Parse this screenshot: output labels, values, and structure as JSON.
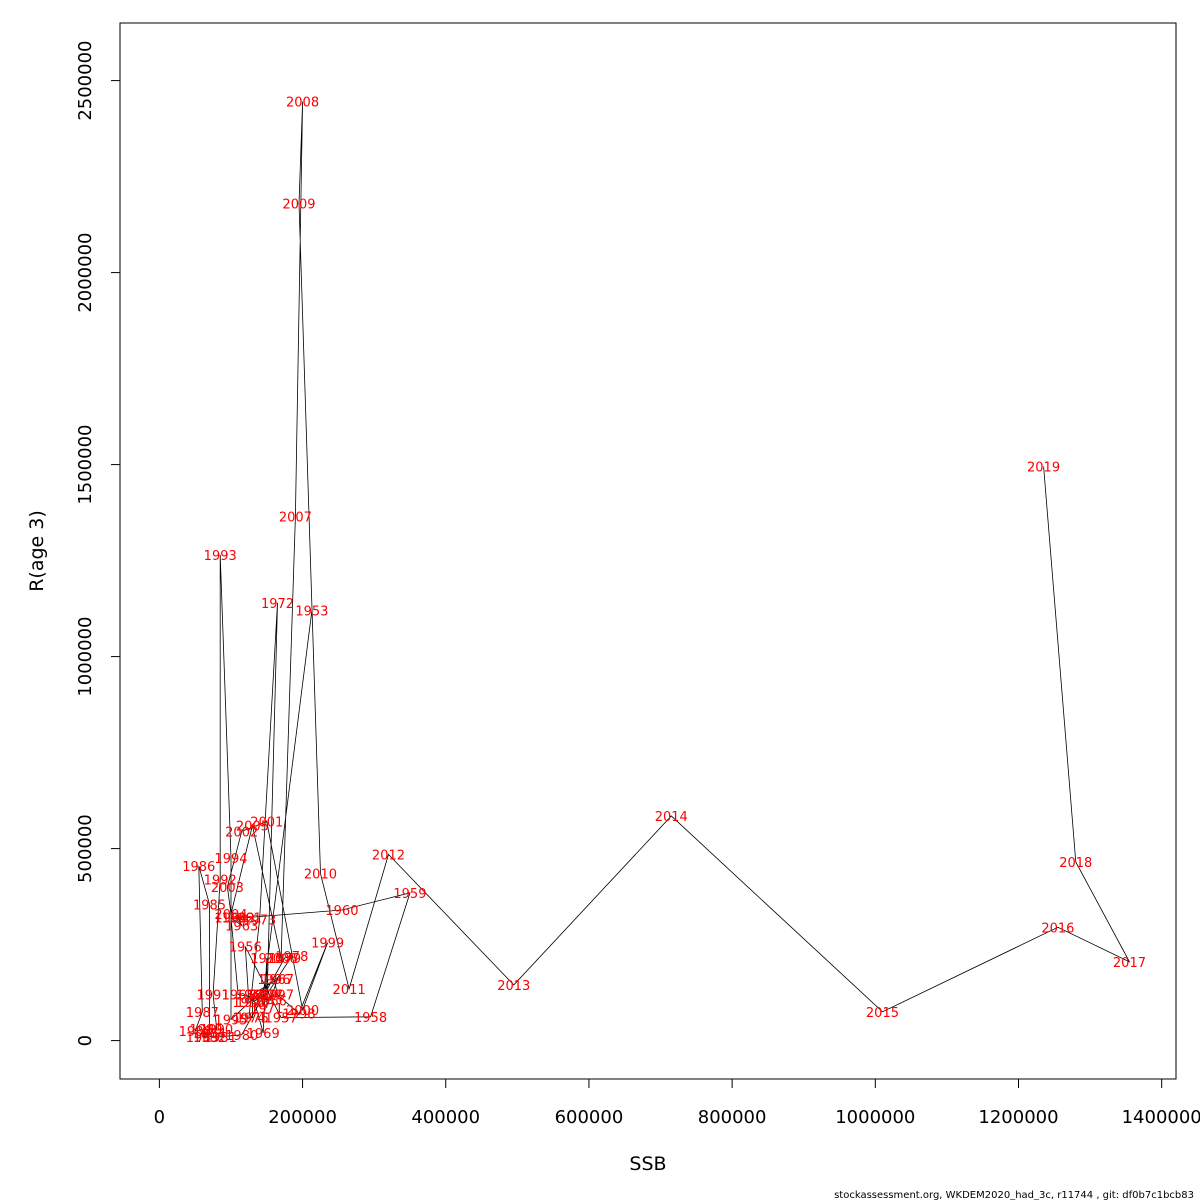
{
  "chart_data": {
    "type": "line",
    "xlabel": "SSB",
    "ylabel": "R(age 3)",
    "xlim": [
      -55000,
      1420000
    ],
    "ylim": [
      -100000,
      2650000
    ],
    "x_ticks": [
      0,
      200000,
      400000,
      600000,
      800000,
      1000000,
      1200000,
      1400000
    ],
    "x_tick_labels": [
      "0",
      "200000",
      "400000",
      "600000",
      "800000",
      "1000000",
      "1200000",
      "1400000"
    ],
    "y_ticks": [
      0,
      500000,
      1000000,
      1500000,
      2000000,
      2500000
    ],
    "y_tick_labels": [
      "0",
      "500000",
      "1000000",
      "1500000",
      "2000000",
      "2500000"
    ],
    "grid": false,
    "line_color": "#000000",
    "label_color": "#ff0000",
    "points": [
      {
        "year": "1953",
        "ssb": 213000,
        "r": 1120000
      },
      {
        "year": "1954",
        "ssb": 145000,
        "r": 120000
      },
      {
        "year": "1955",
        "ssb": 125000,
        "r": 100000
      },
      {
        "year": "1956",
        "ssb": 120000,
        "r": 245000
      },
      {
        "year": "1957",
        "ssb": 170000,
        "r": 60000
      },
      {
        "year": "1958",
        "ssb": 295000,
        "r": 62000
      },
      {
        "year": "1959",
        "ssb": 350000,
        "r": 385000
      },
      {
        "year": "1960",
        "ssb": 255000,
        "r": 340000
      },
      {
        "year": "1961",
        "ssb": 120000,
        "r": 320000
      },
      {
        "year": "1962",
        "ssb": 110000,
        "r": 320000
      },
      {
        "year": "1963",
        "ssb": 115000,
        "r": 300000
      },
      {
        "year": "1964",
        "ssb": 100000,
        "r": 320000
      },
      {
        "year": "1965",
        "ssb": 110000,
        "r": 120000
      },
      {
        "year": "1966",
        "ssb": 155000,
        "r": 105000
      },
      {
        "year": "1967",
        "ssb": 165000,
        "r": 160000
      },
      {
        "year": "1968",
        "ssb": 130000,
        "r": 120000
      },
      {
        "year": "1969",
        "ssb": 145000,
        "r": 20000
      },
      {
        "year": "1970",
        "ssb": 150000,
        "r": 215000
      },
      {
        "year": "1971",
        "ssb": 150000,
        "r": 85000
      },
      {
        "year": "1972",
        "ssb": 165000,
        "r": 1140000
      },
      {
        "year": "1973",
        "ssb": 140000,
        "r": 315000
      },
      {
        "year": "1974",
        "ssb": 125000,
        "r": 60000
      },
      {
        "year": "1975",
        "ssb": 130000,
        "r": 60000
      },
      {
        "year": "1976",
        "ssb": 130000,
        "r": 100000
      },
      {
        "year": "1977",
        "ssb": 150000,
        "r": 120000
      },
      {
        "year": "1978",
        "ssb": 185000,
        "r": 220000
      },
      {
        "year": "1979",
        "ssb": 175000,
        "r": 215000
      },
      {
        "year": "1980",
        "ssb": 115000,
        "r": 15000
      },
      {
        "year": "1981",
        "ssb": 85000,
        "r": 10000
      },
      {
        "year": "1982",
        "ssb": 70000,
        "r": 10000
      },
      {
        "year": "1983",
        "ssb": 60000,
        "r": 10000
      },
      {
        "year": "1984",
        "ssb": 70000,
        "r": 20000
      },
      {
        "year": "1985",
        "ssb": 70000,
        "r": 355000
      },
      {
        "year": "1986",
        "ssb": 55000,
        "r": 455000
      },
      {
        "year": "1987",
        "ssb": 60000,
        "r": 75000
      },
      {
        "year": "1988",
        "ssb": 50000,
        "r": 25000
      },
      {
        "year": "1989",
        "ssb": 65000,
        "r": 30000
      },
      {
        "year": "1990",
        "ssb": 80000,
        "r": 30000
      },
      {
        "year": "1991",
        "ssb": 75000,
        "r": 120000
      },
      {
        "year": "1992",
        "ssb": 85000,
        "r": 420000
      },
      {
        "year": "1993",
        "ssb": 85000,
        "r": 1265000
      },
      {
        "year": "1994",
        "ssb": 100000,
        "r": 475000
      },
      {
        "year": "1995",
        "ssb": 100000,
        "r": 55000
      },
      {
        "year": "1996",
        "ssb": 160000,
        "r": 160000
      },
      {
        "year": "1997",
        "ssb": 165000,
        "r": 120000
      },
      {
        "year": "1998",
        "ssb": 195000,
        "r": 70000
      },
      {
        "year": "1999",
        "ssb": 235000,
        "r": 255000
      },
      {
        "year": "2000",
        "ssb": 200000,
        "r": 80000
      },
      {
        "year": "2001",
        "ssb": 150000,
        "r": 570000
      },
      {
        "year": "2002",
        "ssb": 115000,
        "r": 545000
      },
      {
        "year": "2003",
        "ssb": 95000,
        "r": 400000
      },
      {
        "year": "2004",
        "ssb": 100000,
        "r": 330000
      },
      {
        "year": "2005",
        "ssb": 130000,
        "r": 560000
      },
      {
        "year": "2006",
        "ssb": 170000,
        "r": 215000
      },
      {
        "year": "2007",
        "ssb": 190000,
        "r": 1365000
      },
      {
        "year": "2008",
        "ssb": 200000,
        "r": 2445000
      },
      {
        "year": "2009",
        "ssb": 195000,
        "r": 2180000
      },
      {
        "year": "2010",
        "ssb": 225000,
        "r": 435000
      },
      {
        "year": "2011",
        "ssb": 265000,
        "r": 135000
      },
      {
        "year": "2012",
        "ssb": 320000,
        "r": 485000
      },
      {
        "year": "2013",
        "ssb": 495000,
        "r": 145000
      },
      {
        "year": "2014",
        "ssb": 715000,
        "r": 585000
      },
      {
        "year": "2015",
        "ssb": 1010000,
        "r": 75000
      },
      {
        "year": "2016",
        "ssb": 1255000,
        "r": 295000
      },
      {
        "year": "2017",
        "ssb": 1355000,
        "r": 205000
      },
      {
        "year": "2018",
        "ssb": 1280000,
        "r": 465000
      },
      {
        "year": "2019",
        "ssb": 1235000,
        "r": 1495000
      }
    ]
  },
  "footer_note": "stockassessment.org, WKDEM2020_had_3c, r11744 , git: df0b7c1bcb83"
}
